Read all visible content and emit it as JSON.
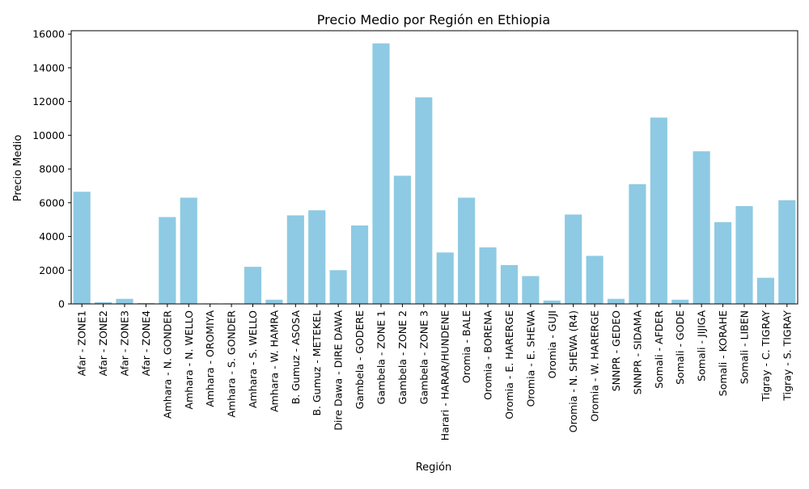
{
  "chart_data": {
    "type": "bar",
    "title": "Precio Medio por Región en Ethiopia",
    "xlabel": "Región",
    "ylabel": "Precio Medio",
    "ylim": [
      0,
      16200
    ],
    "yticks": [
      0,
      2000,
      4000,
      6000,
      8000,
      10000,
      12000,
      14000,
      16000
    ],
    "grid": false,
    "bar_color": "#8ecae3",
    "categories": [
      "Afar - ZONE1",
      "Afar - ZONE2",
      "Afar - ZONE3",
      "Afar - ZONE4",
      "Amhara - N. GONDER",
      "Amhara - N. WELLO",
      "Amhara - OROMIYA",
      "Amhara - S. GONDER",
      "Amhara - S. WELLO",
      "Amhara - W. HAMRA",
      "B. Gumuz - ASOSA",
      "B. Gumuz - METEKEL",
      "Dire Dawa - DIRE DAWA",
      "Gambela - GODERE",
      "Gambela - ZONE 1",
      "Gambela - ZONE 2",
      "Gambela - ZONE 3",
      "Harari - HARAR/HUNDENE",
      "Oromia - BALE",
      "Oromia - BORENA",
      "Oromia - E. HARERGE",
      "Oromia - E. SHEWA",
      "Oromia - GUJI",
      "Oromia - N. SHEWA (R4)",
      "Oromia - W. HARERGE",
      "SNNPR - GEDEO",
      "SNNPR - SIDAMA",
      "Somali - AFDER",
      "Somali - GODE",
      "Somali - JIJIGA",
      "Somali - KORAHE",
      "Somali - LIBEN",
      "Tigray - C. TIGRAY",
      "Tigray - S. TIGRAY"
    ],
    "values": [
      6650,
      100,
      300,
      50,
      5150,
      6300,
      30,
      30,
      2200,
      250,
      5250,
      5550,
      2000,
      4650,
      15450,
      7600,
      12250,
      3050,
      6300,
      3350,
      2300,
      1650,
      200,
      5300,
      2850,
      300,
      7100,
      11050,
      250,
      9050,
      4850,
      5800,
      1550,
      6150
    ]
  }
}
